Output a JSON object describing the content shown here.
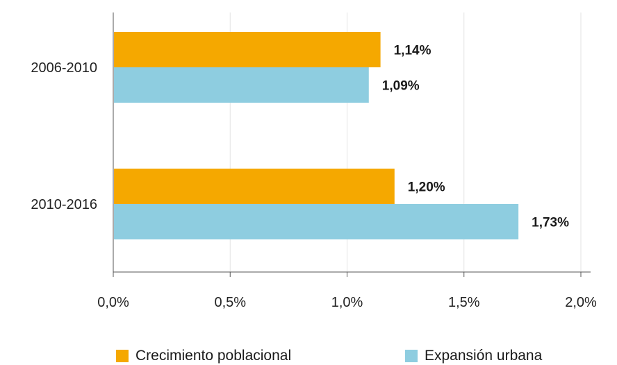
{
  "chart_data": {
    "type": "bar",
    "orientation": "horizontal",
    "categories": [
      "2006-2010",
      "2010-2016"
    ],
    "series": [
      {
        "name": "Crecimiento poblacional",
        "values": [
          1.14,
          1.2
        ],
        "labels": [
          "1,14%",
          "1,20%"
        ],
        "color": "#f5a800"
      },
      {
        "name": "Expansión urbana",
        "values": [
          1.09,
          1.73
        ],
        "labels": [
          "1,09%",
          "1,73%"
        ],
        "color": "#8ecde0"
      }
    ],
    "xlim": [
      0,
      2.0
    ],
    "xticks": [
      0,
      0.5,
      1.0,
      1.5,
      2.0
    ],
    "xtick_labels": [
      "0,0%",
      "0,5%",
      "1,0%",
      "1,5%",
      "2,0%"
    ],
    "grid": "vertical",
    "legend_position": "bottom",
    "title": "",
    "xlabel": "",
    "ylabel": ""
  }
}
